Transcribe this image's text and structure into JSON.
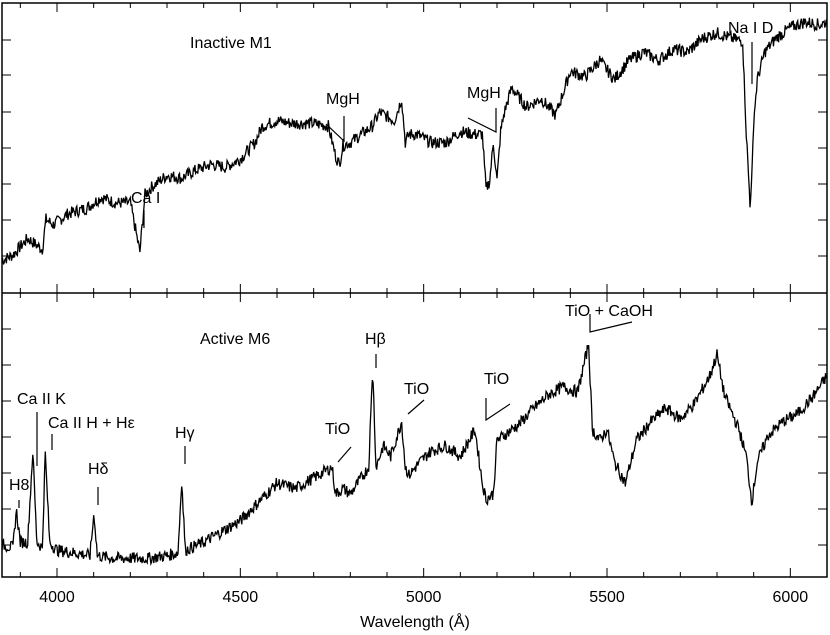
{
  "chart_data": {
    "type": "line",
    "xlabel": "Wavelength (Å)",
    "xlim": [
      3850,
      6100
    ],
    "xticks": [
      "4000",
      "4500",
      "5000",
      "5500",
      "6000"
    ],
    "panels": [
      {
        "name": "Inactive M1",
        "ylim": [
          0,
          1
        ],
        "series": [
          {
            "name": "Inactive M1",
            "x": [
              3850,
              3880,
              3920,
              3960,
              3970,
              3990,
              4030,
              4080,
              4120,
              4160,
              4200,
              4226,
              4240,
              4260,
              4300,
              4340,
              4380,
              4420,
              4460,
              4500,
              4540,
              4560,
              4600,
              4640,
              4680,
              4700,
              4740,
              4760,
              4770,
              4780,
              4800,
              4840,
              4860,
              4880,
              4920,
              4940,
              4950,
              4960,
              4980,
              5020,
              5060,
              5100,
              5140,
              5160,
              5170,
              5180,
              5190,
              5200,
              5210,
              5220,
              5240,
              5280,
              5320,
              5360,
              5400,
              5440,
              5480,
              5520,
              5560,
              5600,
              5640,
              5680,
              5720,
              5760,
              5800,
              5840,
              5870,
              5880,
              5890,
              5895,
              5900,
              5910,
              5930,
              5960,
              6000,
              6040,
              6080,
              6100
            ],
            "y": [
              0.09,
              0.11,
              0.17,
              0.13,
              0.24,
              0.22,
              0.26,
              0.28,
              0.32,
              0.3,
              0.3,
              0.12,
              0.33,
              0.36,
              0.4,
              0.39,
              0.42,
              0.44,
              0.43,
              0.46,
              0.52,
              0.58,
              0.6,
              0.59,
              0.59,
              0.59,
              0.58,
              0.47,
              0.44,
              0.51,
              0.52,
              0.56,
              0.58,
              0.63,
              0.6,
              0.68,
              0.52,
              0.55,
              0.55,
              0.52,
              0.52,
              0.56,
              0.55,
              0.55,
              0.35,
              0.38,
              0.52,
              0.38,
              0.56,
              0.63,
              0.72,
              0.65,
              0.68,
              0.62,
              0.78,
              0.76,
              0.82,
              0.75,
              0.82,
              0.85,
              0.82,
              0.86,
              0.85,
              0.9,
              0.92,
              0.9,
              0.89,
              0.55,
              0.3,
              0.38,
              0.6,
              0.75,
              0.85,
              0.9,
              0.94,
              0.96,
              0.95,
              0.96
            ]
          }
        ],
        "annotations": [
          "Ca I",
          "MgH",
          "MgH",
          "Na I D"
        ]
      },
      {
        "name": "Active M6",
        "ylim": [
          0,
          1
        ],
        "series": [
          {
            "name": "Active M6",
            "x": [
              3850,
              3880,
              3889,
              3900,
              3920,
              3934,
              3945,
              3960,
              3968,
              3980,
              4000,
              4050,
              4090,
              4101,
              4110,
              4150,
              4200,
              4250,
              4300,
              4330,
              4340,
              4350,
              4400,
              4450,
              4500,
              4550,
              4600,
              4650,
              4700,
              4750,
              4760,
              4780,
              4800,
              4830,
              4850,
              4861,
              4870,
              4890,
              4910,
              4940,
              4950,
              4960,
              4990,
              5020,
              5060,
              5100,
              5140,
              5160,
              5170,
              5190,
              5200,
              5220,
              5260,
              5300,
              5340,
              5380,
              5420,
              5450,
              5460,
              5480,
              5500,
              5520,
              5550,
              5580,
              5620,
              5660,
              5700,
              5740,
              5780,
              5800,
              5820,
              5860,
              5880,
              5895,
              5910,
              5940,
              5980,
              6020,
              6060,
              6100
            ],
            "y": [
              0.09,
              0.08,
              0.22,
              0.1,
              0.1,
              0.44,
              0.1,
              0.08,
              0.43,
              0.1,
              0.07,
              0.06,
              0.05,
              0.21,
              0.05,
              0.04,
              0.04,
              0.04,
              0.05,
              0.06,
              0.33,
              0.07,
              0.1,
              0.14,
              0.18,
              0.25,
              0.32,
              0.3,
              0.34,
              0.38,
              0.28,
              0.3,
              0.28,
              0.34,
              0.38,
              0.75,
              0.38,
              0.46,
              0.42,
              0.55,
              0.38,
              0.35,
              0.4,
              0.44,
              0.46,
              0.42,
              0.52,
              0.32,
              0.26,
              0.28,
              0.48,
              0.5,
              0.54,
              0.6,
              0.65,
              0.68,
              0.66,
              0.84,
              0.52,
              0.48,
              0.52,
              0.4,
              0.32,
              0.48,
              0.55,
              0.6,
              0.56,
              0.62,
              0.72,
              0.8,
              0.65,
              0.52,
              0.42,
              0.25,
              0.4,
              0.5,
              0.55,
              0.58,
              0.64,
              0.72
            ]
          }
        ],
        "annotations": [
          "H8",
          "Ca II K",
          "Ca II H + Hε",
          "Hδ",
          "Hγ",
          "TiO",
          "Hβ",
          "TiO",
          "TiO",
          "TiO + CaOH"
        ]
      }
    ]
  },
  "labels": {
    "top_title": "Inactive M1",
    "bottom_title": "Active M6",
    "ca1": "Ca I",
    "mgh1": "MgH",
    "mgh2": "MgH",
    "nad": "Na I D",
    "h8": "H8",
    "ca2k": "Ca II K",
    "ca2h": "Ca II H + Hε",
    "hdelta": "Hδ",
    "hgamma": "Hγ",
    "tio1": "TiO",
    "hbeta": "Hβ",
    "tio2": "TiO",
    "tio3": "TiO",
    "tiocaoh": "TiO + CaOH"
  }
}
